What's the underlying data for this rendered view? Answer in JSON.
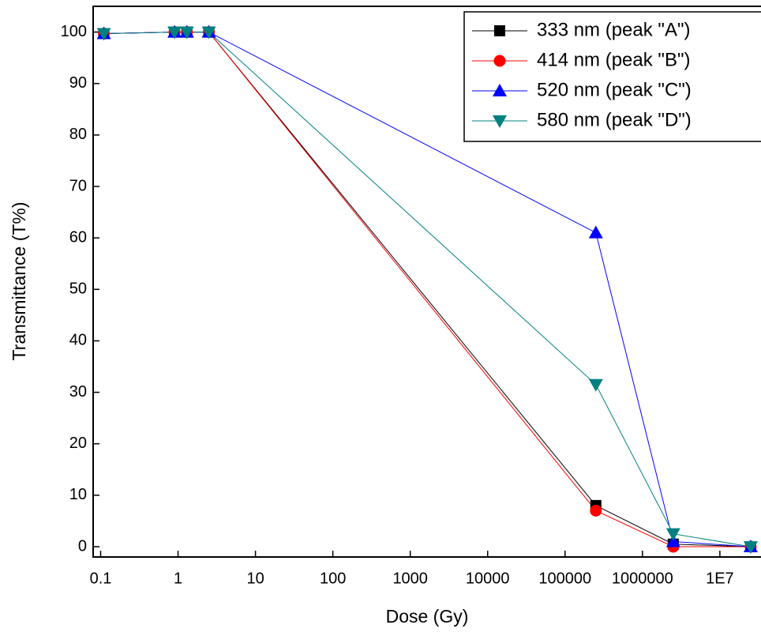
{
  "chart_data": {
    "type": "line",
    "xlabel": "Dose (Gy)",
    "ylabel": "Transmittance (T%)",
    "xscale": "log",
    "x": [
      0.11,
      0.9,
      1.3,
      2.5,
      250000,
      2500000,
      25000000
    ],
    "series": [
      {
        "name": "333 nm (peak \"A\")",
        "color": "#000000",
        "marker": "square",
        "values": [
          99.7,
          100,
          100,
          100,
          8,
          0.5,
          0
        ]
      },
      {
        "name": "414 nm (peak \"B\")",
        "color": "#ff0000",
        "marker": "circle",
        "values": [
          99.7,
          100,
          100,
          100,
          7,
          0,
          0
        ]
      },
      {
        "name": "520 nm (peak \"C\")",
        "color": "#0000ff",
        "marker": "triangle-up",
        "values": [
          99.7,
          100,
          100,
          100,
          61,
          1,
          0
        ]
      },
      {
        "name": "580 nm (peak \"D\")",
        "color": "#008080",
        "marker": "triangle-down",
        "values": [
          99.7,
          100,
          100,
          100,
          31.5,
          2.5,
          0
        ]
      }
    ],
    "xlim": [
      0.08,
      34000000
    ],
    "ylim": [
      -2,
      105
    ],
    "xticks": [
      0.1,
      1,
      10,
      100,
      1000,
      10000,
      100000,
      1000000,
      {
        "value": 10000000,
        "label": "1E7"
      }
    ],
    "yticks": [
      0,
      10,
      20,
      30,
      40,
      50,
      60,
      70,
      80,
      90,
      100
    ],
    "legend": "top-right"
  }
}
